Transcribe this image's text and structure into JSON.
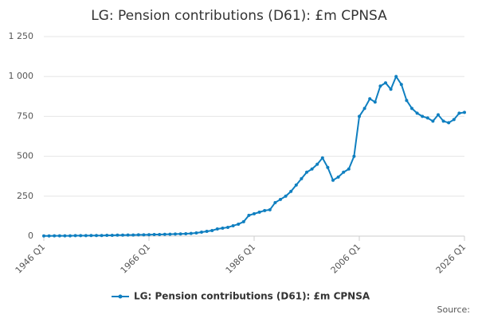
{
  "chart_data": {
    "type": "line",
    "title": "LG: Pension contributions (D61): £m CPNSA",
    "source": "Source:",
    "categories": [
      "1946 Q1",
      null,
      null,
      null,
      null,
      null,
      null,
      null,
      null,
      null,
      null,
      null,
      null,
      null,
      null,
      null,
      null,
      null,
      null,
      null,
      "1966 Q1",
      null,
      null,
      null,
      null,
      null,
      null,
      null,
      null,
      null,
      null,
      null,
      null,
      null,
      null,
      null,
      null,
      null,
      null,
      null,
      "1986 Q1",
      null,
      null,
      null,
      null,
      null,
      null,
      null,
      null,
      null,
      null,
      null,
      null,
      null,
      null,
      null,
      null,
      null,
      null,
      null,
      "2006 Q1",
      null,
      null,
      null,
      null,
      null,
      null,
      null,
      null,
      null,
      null,
      null,
      null,
      null,
      null,
      null,
      null,
      null,
      null,
      null,
      "2026 Q1"
    ],
    "series": [
      {
        "name": "LG: Pension contributions (D61): £m CPNSA",
        "color": "#0f7fc0",
        "values": [
          1,
          1,
          2,
          2,
          2,
          2,
          3,
          3,
          3,
          4,
          4,
          4,
          5,
          5,
          6,
          6,
          7,
          7,
          8,
          8,
          9,
          10,
          10,
          11,
          12,
          13,
          14,
          15,
          17,
          20,
          25,
          30,
          35,
          45,
          50,
          55,
          65,
          75,
          90,
          130,
          140,
          150,
          160,
          165,
          210,
          230,
          250,
          280,
          320,
          360,
          400,
          420,
          450,
          490,
          430,
          350,
          370,
          400,
          420,
          500,
          750,
          800,
          860,
          840,
          940,
          960,
          920,
          1000,
          950,
          850,
          800,
          770,
          750,
          740,
          720,
          760,
          720,
          710,
          730,
          770,
          775
        ]
      }
    ],
    "ylim": [
      0,
      1250
    ],
    "yticks": [
      0,
      250,
      500,
      750,
      {
        "value": 1000,
        "label": "1 000"
      },
      {
        "value": 1250,
        "label": "1 250"
      }
    ],
    "grid": true
  }
}
